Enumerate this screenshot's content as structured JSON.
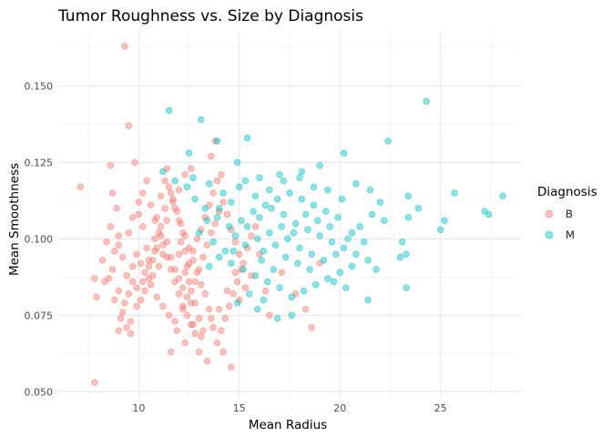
{
  "chart_data": {
    "type": "scatter",
    "title": "Tumor Roughness vs. Size by Diagnosis",
    "xlabel": "Mean Radius",
    "ylabel": "Mean Smoothness",
    "xlim": [
      6.0,
      29.0
    ],
    "ylim": [
      0.048,
      0.168
    ],
    "x_ticks": [
      10,
      15,
      20,
      25
    ],
    "x_tick_labels": [
      "10",
      "15",
      "20",
      "25"
    ],
    "y_ticks": [
      0.05,
      0.075,
      0.1,
      0.125,
      0.15
    ],
    "y_tick_labels": [
      "0.050",
      "0.075",
      "0.100",
      "0.125",
      "0.150"
    ],
    "grid": true,
    "legend": {
      "title": "Diagnosis",
      "placement": "right",
      "entries": [
        "B",
        "M"
      ]
    },
    "colors": {
      "B": "#F8766D",
      "M": "#00BFC4"
    },
    "series": [
      {
        "name": "B",
        "color": "#F8766D",
        "points": [
          [
            9.3,
            0.163
          ],
          [
            9.5,
            0.137
          ],
          [
            9.8,
            0.125
          ],
          [
            8.6,
            0.124
          ],
          [
            7.1,
            0.117
          ],
          [
            8.7,
            0.115
          ],
          [
            7.8,
            0.087
          ],
          [
            7.9,
            0.081
          ],
          [
            8.3,
            0.086
          ],
          [
            7.8,
            0.053
          ],
          [
            9.0,
            0.07
          ],
          [
            9.2,
            0.076
          ],
          [
            9.6,
            0.069
          ],
          [
            8.9,
            0.11
          ],
          [
            9.0,
            0.098
          ],
          [
            9.5,
            0.102
          ],
          [
            9.7,
            0.107
          ],
          [
            10.0,
            0.112
          ],
          [
            10.2,
            0.104
          ],
          [
            10.4,
            0.097
          ],
          [
            10.5,
            0.093
          ],
          [
            10.7,
            0.088
          ],
          [
            10.8,
            0.1
          ],
          [
            10.9,
            0.107
          ],
          [
            11.1,
            0.114
          ],
          [
            11.3,
            0.119
          ],
          [
            11.4,
            0.123
          ],
          [
            11.6,
            0.115
          ],
          [
            11.8,
            0.11
          ],
          [
            12.0,
            0.106
          ],
          [
            12.2,
            0.102
          ],
          [
            12.3,
            0.096
          ],
          [
            12.4,
            0.091
          ],
          [
            12.5,
            0.086
          ],
          [
            12.6,
            0.083
          ],
          [
            12.8,
            0.079
          ],
          [
            13.0,
            0.074
          ],
          [
            13.1,
            0.068
          ],
          [
            12.3,
            0.066
          ],
          [
            11.9,
            0.07
          ],
          [
            11.5,
            0.075
          ],
          [
            11.2,
            0.078
          ],
          [
            10.9,
            0.081
          ],
          [
            10.6,
            0.085
          ],
          [
            10.3,
            0.089
          ],
          [
            10.1,
            0.092
          ],
          [
            9.9,
            0.095
          ],
          [
            9.7,
            0.091
          ],
          [
            9.4,
            0.088
          ],
          [
            9.2,
            0.094
          ],
          [
            9.0,
            0.101
          ],
          [
            8.8,
            0.096
          ],
          [
            8.6,
            0.104
          ],
          [
            8.4,
            0.099
          ],
          [
            8.2,
            0.093
          ],
          [
            12.0,
            0.087
          ],
          [
            12.2,
            0.084
          ],
          [
            12.4,
            0.081
          ],
          [
            12.6,
            0.079
          ],
          [
            12.8,
            0.086
          ],
          [
            13.0,
            0.09
          ],
          [
            13.2,
            0.094
          ],
          [
            13.4,
            0.098
          ],
          [
            13.6,
            0.102
          ],
          [
            13.8,
            0.105
          ],
          [
            14.0,
            0.109
          ],
          [
            14.2,
            0.112
          ],
          [
            14.4,
            0.108
          ],
          [
            14.6,
            0.103
          ],
          [
            14.8,
            0.099
          ],
          [
            15.0,
            0.095
          ],
          [
            15.1,
            0.09
          ],
          [
            14.9,
            0.086
          ],
          [
            14.7,
            0.082
          ],
          [
            14.5,
            0.078
          ],
          [
            14.3,
            0.074
          ],
          [
            14.1,
            0.07
          ],
          [
            13.9,
            0.066
          ],
          [
            13.7,
            0.071
          ],
          [
            13.5,
            0.077
          ],
          [
            13.3,
            0.082
          ],
          [
            13.1,
            0.085
          ],
          [
            12.9,
            0.089
          ],
          [
            12.7,
            0.093
          ],
          [
            12.5,
            0.097
          ],
          [
            12.3,
            0.101
          ],
          [
            12.1,
            0.105
          ],
          [
            11.9,
            0.109
          ],
          [
            11.7,
            0.113
          ],
          [
            11.5,
            0.117
          ],
          [
            11.3,
            0.11
          ],
          [
            11.1,
            0.104
          ],
          [
            10.9,
            0.097
          ],
          [
            10.7,
            0.093
          ],
          [
            10.5,
            0.087
          ],
          [
            10.3,
            0.083
          ],
          [
            10.1,
            0.08
          ],
          [
            9.9,
            0.084
          ],
          [
            9.7,
            0.086
          ],
          [
            9.5,
            0.082
          ],
          [
            11.0,
            0.091
          ],
          [
            11.2,
            0.095
          ],
          [
            11.4,
            0.099
          ],
          [
            11.6,
            0.094
          ],
          [
            11.8,
            0.09
          ],
          [
            12.0,
            0.095
          ],
          [
            12.1,
            0.099
          ],
          [
            12.3,
            0.089
          ],
          [
            12.5,
            0.092
          ],
          [
            12.7,
            0.096
          ],
          [
            12.9,
            0.1
          ],
          [
            13.1,
            0.103
          ],
          [
            13.3,
            0.107
          ],
          [
            13.5,
            0.111
          ],
          [
            13.7,
            0.115
          ],
          [
            13.9,
            0.119
          ],
          [
            14.1,
            0.121
          ],
          [
            13.6,
            0.127
          ],
          [
            13.8,
            0.132
          ],
          [
            12.6,
            0.123
          ],
          [
            12.3,
            0.121
          ],
          [
            12.0,
            0.116
          ],
          [
            11.7,
            0.112
          ],
          [
            11.4,
            0.106
          ],
          [
            11.1,
            0.101
          ],
          [
            10.8,
            0.096
          ],
          [
            10.5,
            0.091
          ],
          [
            10.2,
            0.086
          ],
          [
            9.9,
            0.078
          ],
          [
            9.6,
            0.073
          ],
          [
            9.3,
            0.079
          ],
          [
            9.0,
            0.083
          ],
          [
            8.7,
            0.09
          ],
          [
            8.5,
            0.087
          ],
          [
            8.8,
            0.08
          ],
          [
            9.1,
            0.074
          ],
          [
            9.4,
            0.071
          ],
          [
            13.0,
            0.063
          ],
          [
            13.4,
            0.06
          ],
          [
            14.6,
            0.058
          ],
          [
            14.2,
            0.063
          ],
          [
            11.6,
            0.063
          ],
          [
            11.8,
            0.073
          ],
          [
            12.2,
            0.077
          ],
          [
            12.7,
            0.072
          ],
          [
            13.2,
            0.07
          ],
          [
            13.6,
            0.074
          ],
          [
            14.0,
            0.077
          ],
          [
            14.4,
            0.083
          ],
          [
            14.8,
            0.089
          ],
          [
            15.2,
            0.092
          ],
          [
            15.4,
            0.097
          ],
          [
            15.6,
            0.101
          ],
          [
            15.8,
            0.104
          ],
          [
            16.0,
            0.095
          ],
          [
            15.6,
            0.088
          ],
          [
            15.3,
            0.084
          ],
          [
            15.0,
            0.08
          ],
          [
            16.3,
            0.083
          ],
          [
            16.5,
            0.075
          ],
          [
            17.1,
            0.089
          ],
          [
            17.8,
            0.082
          ],
          [
            18.3,
            0.077
          ],
          [
            18.6,
            0.071
          ],
          [
            19.0,
            0.092
          ],
          [
            10.0,
            0.108
          ],
          [
            10.2,
            0.115
          ],
          [
            10.4,
            0.119
          ],
          [
            10.6,
            0.111
          ],
          [
            10.8,
            0.106
          ],
          [
            11.0,
            0.102
          ],
          [
            11.2,
            0.098
          ],
          [
            11.4,
            0.094
          ],
          [
            11.6,
            0.09
          ],
          [
            11.8,
            0.086
          ],
          [
            12.0,
            0.082
          ],
          [
            12.2,
            0.078
          ],
          [
            12.4,
            0.075
          ],
          [
            12.6,
            0.072
          ],
          [
            12.8,
            0.069
          ]
        ]
      },
      {
        "name": "M",
        "color": "#00BFC4",
        "points": [
          [
            11.5,
            0.142
          ],
          [
            13.1,
            0.139
          ],
          [
            13.9,
            0.132
          ],
          [
            15.4,
            0.133
          ],
          [
            12.5,
            0.128
          ],
          [
            14.9,
            0.125
          ],
          [
            11.2,
            0.122
          ],
          [
            12.7,
            0.12
          ],
          [
            13.5,
            0.118
          ],
          [
            14.2,
            0.115
          ],
          [
            15.0,
            0.117
          ],
          [
            15.8,
            0.114
          ],
          [
            16.5,
            0.116
          ],
          [
            17.2,
            0.119
          ],
          [
            18.0,
            0.12
          ],
          [
            18.7,
            0.117
          ],
          [
            19.4,
            0.116
          ],
          [
            20.1,
            0.113
          ],
          [
            20.8,
            0.118
          ],
          [
            21.5,
            0.116
          ],
          [
            22.0,
            0.112
          ],
          [
            22.4,
            0.132
          ],
          [
            20.2,
            0.128
          ],
          [
            19.0,
            0.124
          ],
          [
            18.1,
            0.122
          ],
          [
            17.0,
            0.121
          ],
          [
            16.0,
            0.12
          ],
          [
            15.3,
            0.119
          ],
          [
            14.6,
            0.112
          ],
          [
            14.0,
            0.11
          ],
          [
            13.4,
            0.106
          ],
          [
            13.0,
            0.102
          ],
          [
            13.7,
            0.099
          ],
          [
            14.3,
            0.096
          ],
          [
            14.8,
            0.101
          ],
          [
            15.4,
            0.104
          ],
          [
            16.0,
            0.107
          ],
          [
            16.6,
            0.11
          ],
          [
            17.2,
            0.108
          ],
          [
            17.8,
            0.105
          ],
          [
            18.4,
            0.103
          ],
          [
            19.0,
            0.101
          ],
          [
            19.6,
            0.099
          ],
          [
            20.2,
            0.097
          ],
          [
            20.8,
            0.095
          ],
          [
            21.4,
            0.093
          ],
          [
            20.6,
            0.091
          ],
          [
            20.0,
            0.089
          ],
          [
            19.4,
            0.087
          ],
          [
            18.8,
            0.085
          ],
          [
            18.2,
            0.083
          ],
          [
            17.6,
            0.081
          ],
          [
            17.0,
            0.084
          ],
          [
            16.4,
            0.086
          ],
          [
            15.8,
            0.088
          ],
          [
            15.2,
            0.09
          ],
          [
            14.6,
            0.092
          ],
          [
            14.0,
            0.094
          ],
          [
            13.5,
            0.091
          ],
          [
            16.2,
            0.096
          ],
          [
            16.8,
            0.098
          ],
          [
            17.4,
            0.1
          ],
          [
            18.0,
            0.097
          ],
          [
            18.6,
            0.095
          ],
          [
            19.2,
            0.093
          ],
          [
            19.8,
            0.095
          ],
          [
            20.4,
            0.1
          ],
          [
            21.0,
            0.104
          ],
          [
            21.6,
            0.108
          ],
          [
            22.2,
            0.106
          ],
          [
            19.9,
            0.107
          ],
          [
            19.3,
            0.109
          ],
          [
            18.7,
            0.111
          ],
          [
            18.1,
            0.113
          ],
          [
            17.5,
            0.115
          ],
          [
            16.9,
            0.113
          ],
          [
            16.3,
            0.111
          ],
          [
            15.7,
            0.109
          ],
          [
            15.1,
            0.106
          ],
          [
            14.5,
            0.104
          ],
          [
            13.9,
            0.107
          ],
          [
            13.3,
            0.11
          ],
          [
            12.8,
            0.113
          ],
          [
            12.4,
            0.117
          ],
          [
            11.8,
            0.119
          ],
          [
            20.3,
            0.084
          ],
          [
            21.4,
            0.08
          ],
          [
            19.7,
            0.086
          ],
          [
            17.6,
            0.075
          ],
          [
            16.9,
            0.074
          ],
          [
            16.2,
            0.08
          ],
          [
            15.9,
            0.077
          ],
          [
            15.5,
            0.082
          ],
          [
            14.9,
            0.079
          ],
          [
            23.0,
            0.094
          ],
          [
            23.3,
            0.095
          ],
          [
            23.3,
            0.084
          ],
          [
            23.1,
            0.099
          ],
          [
            23.4,
            0.107
          ],
          [
            23.9,
            0.11
          ],
          [
            23.4,
            0.114
          ],
          [
            24.3,
            0.145
          ],
          [
            25.0,
            0.103
          ],
          [
            25.2,
            0.106
          ],
          [
            25.7,
            0.115
          ],
          [
            27.2,
            0.109
          ],
          [
            27.4,
            0.108
          ],
          [
            28.1,
            0.114
          ],
          [
            20.6,
            0.102
          ],
          [
            21.2,
            0.099
          ],
          [
            19.5,
            0.104
          ],
          [
            18.9,
            0.106
          ],
          [
            18.3,
            0.108
          ],
          [
            17.7,
            0.102
          ],
          [
            17.1,
            0.104
          ],
          [
            16.5,
            0.102
          ],
          [
            15.9,
            0.1
          ],
          [
            15.3,
            0.098
          ],
          [
            14.7,
            0.096
          ],
          [
            21.8,
            0.09
          ],
          [
            18.5,
            0.09
          ],
          [
            17.9,
            0.092
          ],
          [
            17.3,
            0.094
          ],
          [
            16.7,
            0.09
          ],
          [
            16.1,
            0.093
          ]
        ]
      }
    ]
  }
}
